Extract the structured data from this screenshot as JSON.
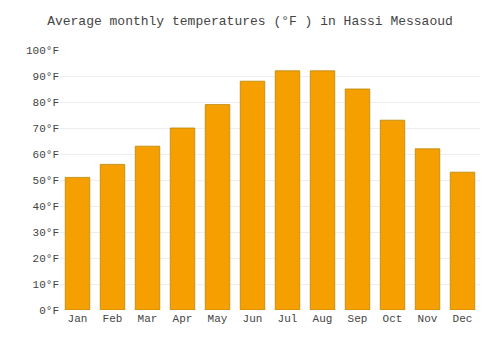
{
  "chart_data": {
    "type": "bar",
    "title": "Average monthly temperatures (°F ) in Hassi Messaoud",
    "categories": [
      "Jan",
      "Feb",
      "Mar",
      "Apr",
      "May",
      "Jun",
      "Jul",
      "Aug",
      "Sep",
      "Oct",
      "Nov",
      "Dec"
    ],
    "values": [
      51,
      56,
      63,
      70,
      79,
      88,
      92,
      92,
      85,
      73,
      62,
      53
    ],
    "color": "#F5A000",
    "ylim": [
      0,
      100
    ],
    "yticks": [
      {
        "value": 0,
        "label": "0°F"
      },
      {
        "value": 10,
        "label": "10°F"
      },
      {
        "value": 20,
        "label": "20°F"
      },
      {
        "value": 30,
        "label": "30°F"
      },
      {
        "value": 40,
        "label": "40°F"
      },
      {
        "value": 50,
        "label": "50°F"
      },
      {
        "value": 60,
        "label": "60°F"
      },
      {
        "value": 70,
        "label": "70°F"
      },
      {
        "value": 80,
        "label": "80°F"
      },
      {
        "value": 90,
        "label": "90°F"
      },
      {
        "value": 100,
        "label": "100°F"
      }
    ],
    "grid": true
  }
}
